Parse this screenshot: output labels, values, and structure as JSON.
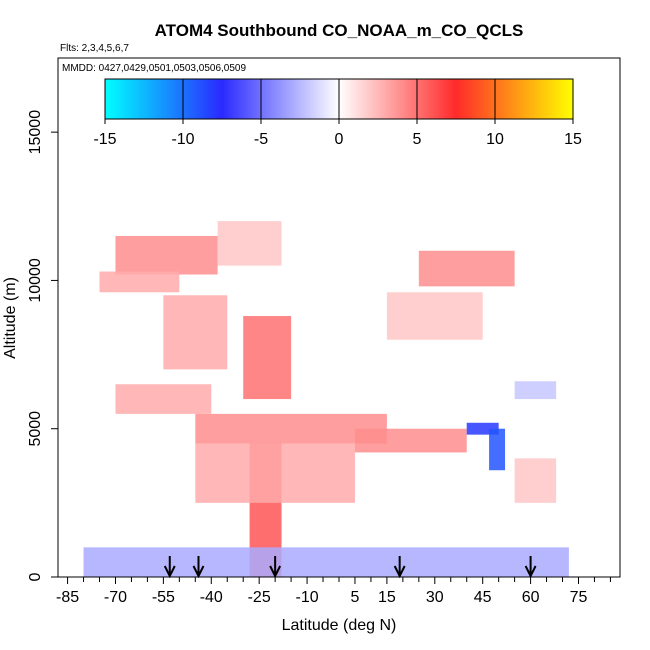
{
  "chart_data": {
    "type": "heatmap",
    "title": "ATOM4 Southbound CO_NOAA_m_CO_QCLS",
    "flights_label": "Flts: 2,3,4,5,6,7",
    "dates_label": "MMDD: 0427,0429,0501,0503,0506,0509",
    "xlabel": "Latitude (deg N)",
    "ylabel": "Altitude (m)",
    "xlim": [
      -88,
      88
    ],
    "ylim": [
      0,
      17500
    ],
    "x_ticks": [
      -85,
      -70,
      -55,
      -40,
      -25,
      -10,
      5,
      15,
      30,
      45,
      60,
      75
    ],
    "x_minor_ticks": [
      -80,
      -75,
      -65,
      -60,
      -50,
      -45,
      -35,
      -30,
      -20,
      -15,
      -5,
      0,
      10,
      20,
      25,
      35,
      40,
      50,
      55,
      65,
      70,
      80,
      85
    ],
    "y_ticks": [
      0,
      5000,
      10000,
      15000
    ],
    "colorbar": {
      "ticks": [
        -15,
        -10,
        -5,
        0,
        5,
        10,
        15
      ],
      "range": [
        -15,
        15
      ],
      "colors": [
        "#00ffff",
        "#2a2aff",
        "#ffffff",
        "#ff2a2a",
        "#ffff00"
      ]
    },
    "arrow_latitudes": [
      -53,
      -44,
      -20,
      19,
      60
    ],
    "difference_field": [
      {
        "lat_range": [
          -70,
          -38
        ],
        "alt_range": [
          10200,
          11500
        ],
        "value": 4
      },
      {
        "lat_range": [
          -38,
          -18
        ],
        "alt_range": [
          10500,
          12000
        ],
        "value": 2
      },
      {
        "lat_range": [
          -75,
          -50
        ],
        "alt_range": [
          9600,
          10300
        ],
        "value": 3
      },
      {
        "lat_range": [
          -55,
          -35
        ],
        "alt_range": [
          7000,
          9500
        ],
        "value": 3
      },
      {
        "lat_range": [
          -30,
          -15
        ],
        "alt_range": [
          6000,
          8800
        ],
        "value": 5
      },
      {
        "lat_range": [
          -70,
          -40
        ],
        "alt_range": [
          5500,
          6500
        ],
        "value": 3
      },
      {
        "lat_range": [
          -45,
          15
        ],
        "alt_range": [
          4500,
          5500
        ],
        "value": 4
      },
      {
        "lat_range": [
          -28,
          -18
        ],
        "alt_range": [
          0,
          4500
        ],
        "value": 6
      },
      {
        "lat_range": [
          -45,
          5
        ],
        "alt_range": [
          2500,
          4500
        ],
        "value": 3
      },
      {
        "lat_range": [
          5,
          40
        ],
        "alt_range": [
          4200,
          5000
        ],
        "value": 4
      },
      {
        "lat_range": [
          25,
          55
        ],
        "alt_range": [
          9800,
          11000
        ],
        "value": 4
      },
      {
        "lat_range": [
          15,
          45
        ],
        "alt_range": [
          8000,
          9600
        ],
        "value": 2
      },
      {
        "lat_range": [
          40,
          50
        ],
        "alt_range": [
          4800,
          5200
        ],
        "value": -8
      },
      {
        "lat_range": [
          47,
          52
        ],
        "alt_range": [
          3600,
          5000
        ],
        "value": -9
      },
      {
        "lat_range": [
          -80,
          72
        ],
        "alt_range": [
          0,
          1000
        ],
        "value": -3
      },
      {
        "lat_range": [
          55,
          68
        ],
        "alt_range": [
          6000,
          6600
        ],
        "value": -2
      },
      {
        "lat_range": [
          55,
          68
        ],
        "alt_range": [
          2500,
          4000
        ],
        "value": 2
      }
    ]
  }
}
